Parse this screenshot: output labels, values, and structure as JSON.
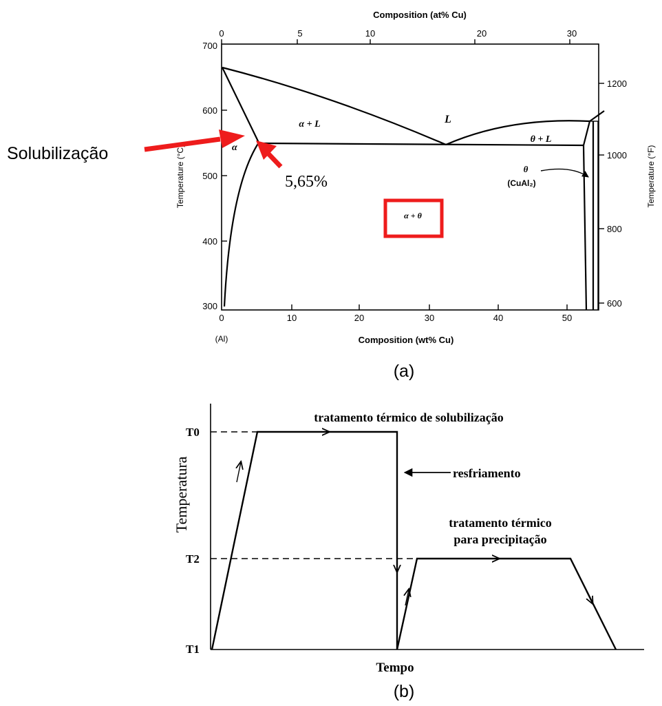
{
  "figure_a": {
    "top_axis_title": "Composition (at% Cu)",
    "top_ticks": [
      "0",
      "5",
      "10",
      "20",
      "30"
    ],
    "bottom_axis_title": "Composition (wt% Cu)",
    "bottom_ticks": [
      "0",
      "10",
      "20",
      "30",
      "40",
      "50"
    ],
    "bottom_origin_label": "(Al)",
    "left_axis_title": "Temperature (°C)",
    "left_ticks": [
      "700",
      "600",
      "500",
      "400",
      "300"
    ],
    "right_axis_title": "Temperature (°F)",
    "right_ticks": [
      "1200",
      "1000",
      "800",
      "600"
    ],
    "regions": {
      "alpha_plus_L": "α + L",
      "L": "L",
      "theta_plus_L": "θ + L",
      "alpha": "α",
      "alpha_plus_theta": "α + θ",
      "theta": "θ",
      "theta_compound": "(CuAl₂)"
    },
    "annotations": {
      "solubilization": "Solubilização",
      "max_solubility": "5,65%"
    },
    "caption": "(a)",
    "highlight_color": "#ee1c1c"
  },
  "figure_b": {
    "y_axis_title": "Temperatura",
    "x_axis_title": "Tempo",
    "y_labels": {
      "t0": "T0",
      "t2": "T2",
      "t1": "T1"
    },
    "annotations": {
      "solution_treatment": "tratamento térmico de solubilização",
      "quench": "resfriamento",
      "precipitation_line1": "tratamento térmico",
      "precipitation_line2": "para precipitação"
    },
    "caption": "(b)"
  }
}
